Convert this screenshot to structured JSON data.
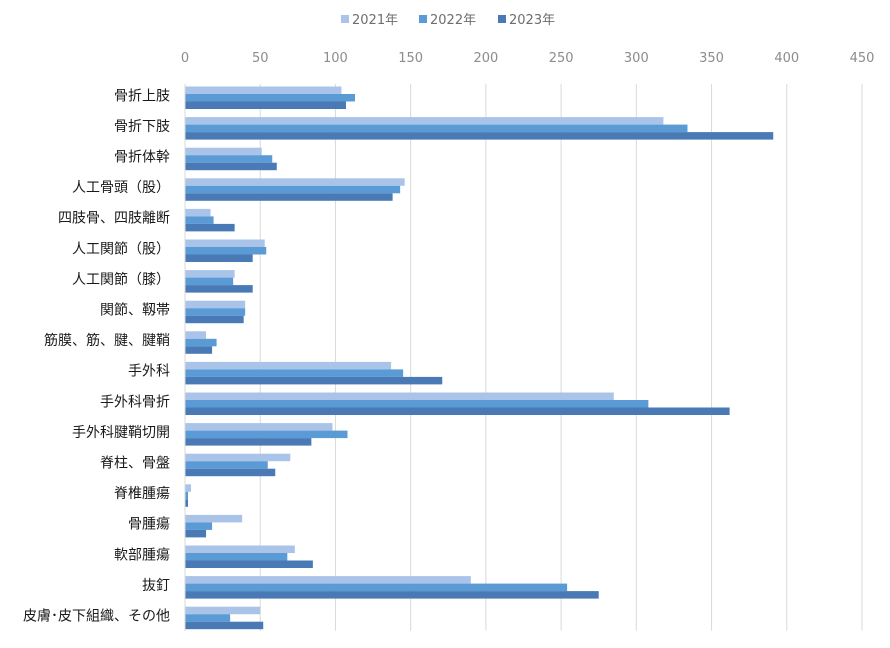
{
  "chart_data": {
    "type": "bar",
    "orientation": "horizontal",
    "categories": [
      "骨折上肢",
      "骨折下肢",
      "骨折体幹",
      "人工骨頭（股）",
      "四肢骨、四肢離断",
      "人工関節（股）",
      "人工関節（膝）",
      "関節、靱帯",
      "筋膜、筋、腱、腱鞘",
      "手外科",
      "手外科骨折",
      "手外科腱鞘切開",
      "脊柱、骨盤",
      "脊椎腫瘍",
      "骨腫瘍",
      "軟部腫瘍",
      "抜釘",
      "皮膚･皮下組織、その他"
    ],
    "series": [
      {
        "name": "2021年",
        "color": "#a9c4e8",
        "values": [
          104,
          318,
          51,
          146,
          17,
          53,
          33,
          40,
          14,
          137,
          285,
          98,
          70,
          4,
          38,
          73,
          190,
          50
        ]
      },
      {
        "name": "2022年",
        "color": "#5b9bd5",
        "values": [
          113,
          334,
          58,
          143,
          19,
          54,
          32,
          40,
          21,
          145,
          308,
          108,
          55,
          2,
          18,
          68,
          254,
          30
        ]
      },
      {
        "name": "2023年",
        "color": "#4a7ab5",
        "values": [
          107,
          391,
          61,
          138,
          33,
          45,
          45,
          39,
          18,
          171,
          362,
          84,
          60,
          2,
          14,
          85,
          275,
          52
        ]
      }
    ],
    "xlim": [
      0,
      450
    ],
    "x_ticks": [
      "0",
      "50",
      "100",
      "150",
      "200",
      "250",
      "300",
      "350",
      "400",
      "450"
    ],
    "x_tick_values": [
      0,
      50,
      100,
      150,
      200,
      250,
      300,
      350,
      400,
      450
    ],
    "x_axis_position": "top",
    "grid": true,
    "legend_position": "top-center",
    "title": "",
    "xlabel": "",
    "ylabel": ""
  }
}
